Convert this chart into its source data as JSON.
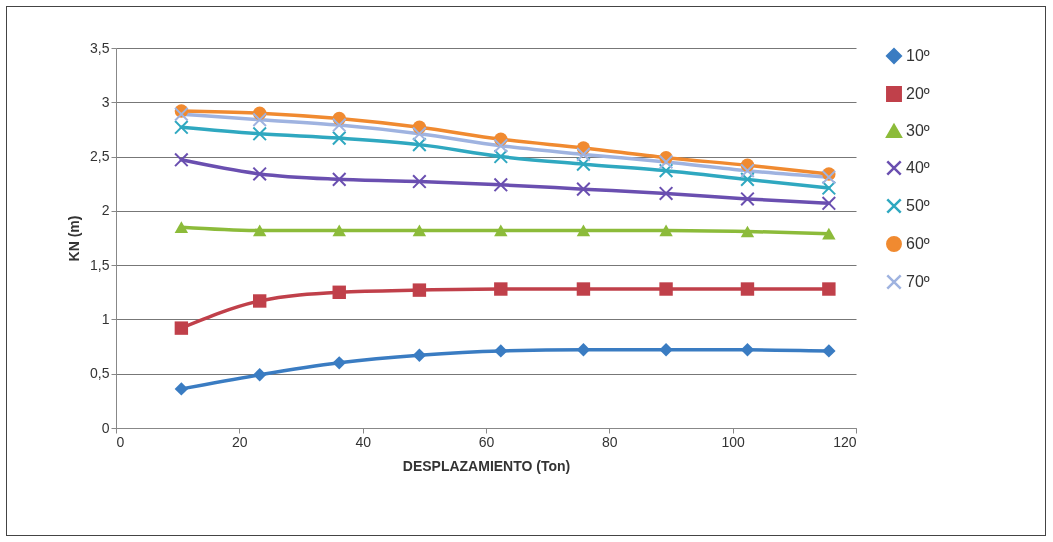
{
  "chart_data": {
    "type": "line",
    "xlabel": "DESPLAZAMIENTO (Ton)",
    "ylabel": "KN (m)",
    "x": [
      10.6,
      23.3,
      36.2,
      49.2,
      62.4,
      75.8,
      89.2,
      102.4,
      115.6
    ],
    "xlim": [
      0,
      120
    ],
    "xticks": [
      0,
      20,
      40,
      60,
      80,
      100,
      120
    ],
    "ylim": [
      0,
      3.5
    ],
    "yticks": [
      0,
      {
        "value": 0.5,
        "label": "0,5"
      },
      1,
      {
        "value": 1.5,
        "label": "1,5"
      },
      2,
      {
        "value": 2.5,
        "label": "2,5"
      },
      3,
      {
        "value": 3.5,
        "label": "3,5"
      }
    ],
    "grid": "y",
    "legend": "right",
    "series": [
      {
        "name": "10º",
        "color": "#3a7cc2",
        "marker": "diamond",
        "values": [
          0.36,
          0.49,
          0.6,
          0.67,
          0.71,
          0.72,
          0.72,
          0.72,
          0.71
        ]
      },
      {
        "name": "20º",
        "color": "#c0404a",
        "marker": "square",
        "values": [
          0.92,
          1.17,
          1.25,
          1.27,
          1.28,
          1.28,
          1.28,
          1.28,
          1.28
        ]
      },
      {
        "name": "30º",
        "color": "#8cbb3a",
        "marker": "triangle",
        "values": [
          1.85,
          1.82,
          1.82,
          1.82,
          1.82,
          1.82,
          1.82,
          1.81,
          1.79
        ]
      },
      {
        "name": "40º",
        "color": "#6a4fb0",
        "marker": "cross",
        "values": [
          2.47,
          2.34,
          2.29,
          2.27,
          2.24,
          2.2,
          2.16,
          2.11,
          2.07
        ]
      },
      {
        "name": "50º",
        "color": "#2fa8c0",
        "marker": "cross",
        "values": [
          2.77,
          2.71,
          2.67,
          2.61,
          2.5,
          2.43,
          2.37,
          2.29,
          2.21
        ]
      },
      {
        "name": "60º",
        "color": "#f08a30",
        "marker": "circle",
        "values": [
          2.92,
          2.9,
          2.85,
          2.77,
          2.66,
          2.58,
          2.49,
          2.42,
          2.34
        ]
      },
      {
        "name": "70º",
        "color": "#9fb3e0",
        "marker": "cross",
        "values": [
          2.89,
          2.84,
          2.79,
          2.71,
          2.6,
          2.52,
          2.45,
          2.37,
          2.31
        ]
      }
    ]
  }
}
